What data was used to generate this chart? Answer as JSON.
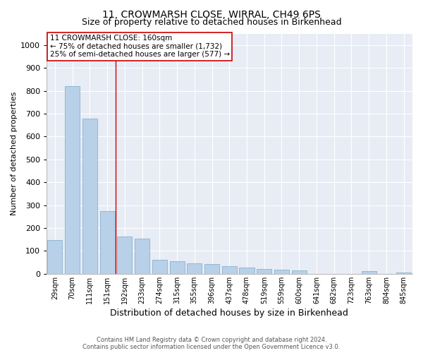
{
  "title": "11, CROWMARSH CLOSE, WIRRAL, CH49 6PS",
  "subtitle": "Size of property relative to detached houses in Birkenhead",
  "xlabel": "Distribution of detached houses by size in Birkenhead",
  "ylabel": "Number of detached properties",
  "categories": [
    "29sqm",
    "70sqm",
    "111sqm",
    "151sqm",
    "192sqm",
    "233sqm",
    "274sqm",
    "315sqm",
    "355sqm",
    "396sqm",
    "437sqm",
    "478sqm",
    "519sqm",
    "559sqm",
    "600sqm",
    "641sqm",
    "682sqm",
    "723sqm",
    "763sqm",
    "804sqm",
    "845sqm"
  ],
  "values": [
    148,
    820,
    678,
    273,
    163,
    155,
    60,
    55,
    45,
    42,
    35,
    28,
    20,
    18,
    15,
    0,
    0,
    0,
    12,
    0,
    5
  ],
  "bar_color": "#b8d0e8",
  "bar_edge_color": "#7aaac8",
  "property_line_x": 3.5,
  "property_line_color": "#cc0000",
  "annotation_text": "11 CROWMARSH CLOSE: 160sqm\n← 75% of detached houses are smaller (1,732)\n25% of semi-detached houses are larger (577) →",
  "annotation_box_facecolor": "#ffffff",
  "annotation_box_edgecolor": "#cc0000",
  "ylim": [
    0,
    1050
  ],
  "yticks": [
    0,
    100,
    200,
    300,
    400,
    500,
    600,
    700,
    800,
    900,
    1000
  ],
  "footer_line1": "Contains HM Land Registry data © Crown copyright and database right 2024.",
  "footer_line2": "Contains public sector information licensed under the Open Government Licence v3.0.",
  "plot_bg_color": "#e8ecf5",
  "fig_bg_color": "#ffffff",
  "grid_color": "#ffffff",
  "title_fontsize": 10,
  "subtitle_fontsize": 9,
  "ylabel_fontsize": 8,
  "xlabel_fontsize": 9,
  "ytick_fontsize": 8,
  "xtick_fontsize": 7,
  "footer_fontsize": 6,
  "annotation_fontsize": 7.5
}
